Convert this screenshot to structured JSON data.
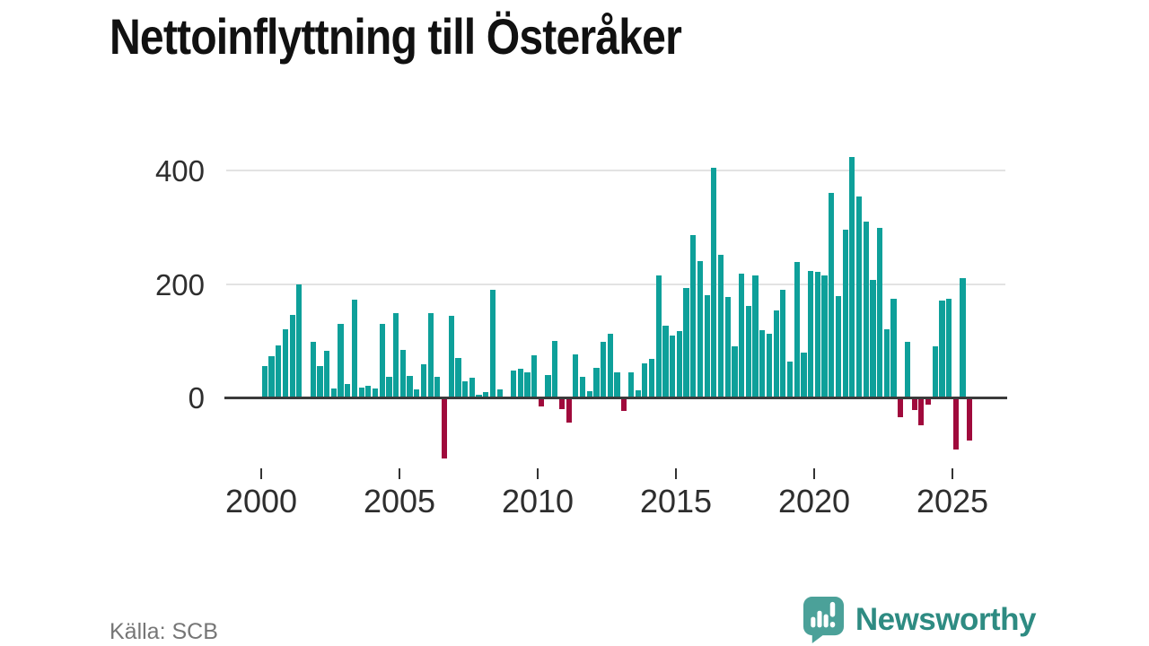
{
  "header": {
    "title": "Nettoinflyttning till Österåker"
  },
  "chart_data": {
    "type": "bar",
    "title": "Nettoinflyttning till Österåker",
    "frequency": "quarterly",
    "start_period": "2000-Q1",
    "end_period": "2025-Q3",
    "values": [
      55,
      73,
      92,
      120,
      146,
      199,
      2,
      98,
      55,
      83,
      16,
      130,
      24,
      173,
      18,
      20,
      16,
      130,
      37,
      149,
      84,
      38,
      15,
      59,
      149,
      37,
      -105,
      144,
      69,
      28,
      35,
      5,
      9,
      190,
      14,
      2,
      47,
      51,
      44,
      75,
      -14,
      39,
      100,
      -19,
      -42,
      76,
      37,
      11,
      52,
      99,
      113,
      44,
      -21,
      44,
      13,
      60,
      68,
      216,
      126,
      110,
      117,
      194,
      286,
      240,
      180,
      406,
      252,
      178,
      90,
      218,
      162,
      216,
      119,
      113,
      153,
      190,
      63,
      239,
      79,
      223,
      221,
      215,
      361,
      179,
      296,
      425,
      355,
      310,
      208,
      300,
      121,
      174,
      -33,
      99,
      -20,
      -46,
      -10,
      90,
      171,
      175,
      -90,
      211,
      -74
    ],
    "x_ticks": [
      {
        "label": "2000",
        "year": 2000
      },
      {
        "label": "2005",
        "year": 2005
      },
      {
        "label": "2010",
        "year": 2010
      },
      {
        "label": "2015",
        "year": 2015
      },
      {
        "label": "2020",
        "year": 2020
      },
      {
        "label": "2025",
        "year": 2025
      }
    ],
    "y_ticks": [
      {
        "label": "0",
        "value": 0
      },
      {
        "label": "200",
        "value": 200
      },
      {
        "label": "400",
        "value": 400
      }
    ],
    "grid_values": [
      200,
      400
    ],
    "ylim": [
      -120,
      440
    ],
    "grid": "horizontal",
    "legend": "none",
    "colors": {
      "positive": "#0ea09a",
      "negative": "#a00a3c"
    },
    "source": "Källa: SCB"
  },
  "logo": {
    "text": "Newsworthy",
    "accent": "#2e8b82",
    "icon": "bar-chart-speech-bubble-icon"
  }
}
